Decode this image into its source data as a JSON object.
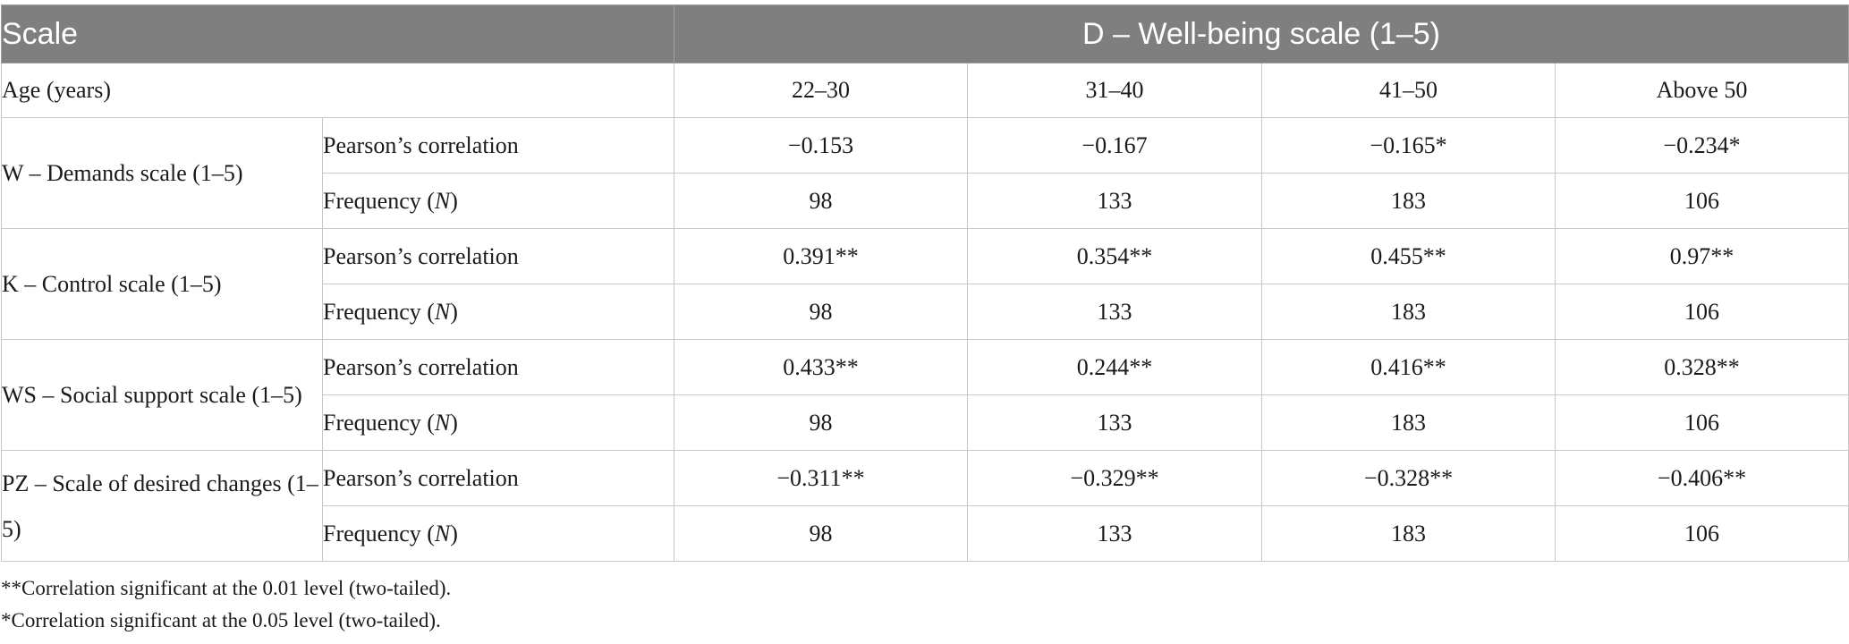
{
  "table": {
    "header": {
      "scale": "Scale",
      "dependent": "D – Well-being scale (1–5)"
    },
    "age_row": {
      "label": "Age (years)",
      "groups": [
        "22–30",
        "31–40",
        "41–50",
        "Above 50"
      ]
    },
    "stat_labels": {
      "correlation": "Pearson’s correlation",
      "frequency_prefix": "Frequency (",
      "frequency_n": "N",
      "frequency_suffix": ")"
    },
    "rows": [
      {
        "scale": "W – Demands scale (1–5)",
        "correlation": [
          "−0.153",
          "−0.167",
          "−0.165*",
          "−0.234*"
        ],
        "frequency": [
          "98",
          "133",
          "183",
          "106"
        ]
      },
      {
        "scale": "K – Control scale (1–5)",
        "correlation": [
          "0.391**",
          "0.354**",
          "0.455**",
          "0.97**"
        ],
        "frequency": [
          "98",
          "133",
          "183",
          "106"
        ]
      },
      {
        "scale": "WS – Social support scale (1–5)",
        "correlation": [
          "0.433**",
          "0.244**",
          "0.416**",
          "0.328**"
        ],
        "frequency": [
          "98",
          "133",
          "183",
          "106"
        ]
      },
      {
        "scale": "PZ – Scale of desired changes (1–5)",
        "correlation": [
          "−0.311**",
          "−0.329**",
          "−0.328**",
          "−0.406**"
        ],
        "frequency": [
          "98",
          "133",
          "183",
          "106"
        ]
      }
    ]
  },
  "notes": [
    "**Correlation significant at the 0.01 level (two-tailed).",
    "*Correlation significant at the 0.05 level (two-tailed)."
  ],
  "colors": {
    "header_background": "#7f7f80",
    "header_text": "#ffffff",
    "grid_lines": "#c8c8c8"
  }
}
